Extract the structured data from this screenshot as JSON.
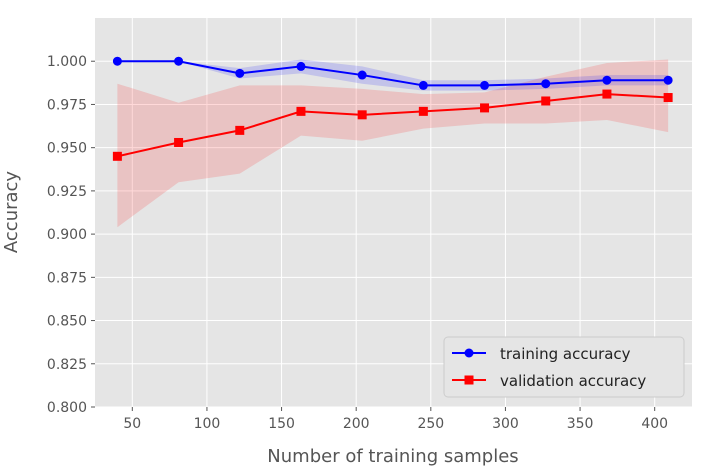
{
  "chart_data": {
    "type": "line",
    "title": "",
    "xlabel": "Number of training samples",
    "ylabel": "Accuracy",
    "xlim": [
      25,
      425
    ],
    "ylim": [
      0.8,
      1.025
    ],
    "grid": true,
    "x_ticks": [
      50,
      100,
      150,
      200,
      250,
      300,
      350,
      400
    ],
    "x_tick_labels": [
      "50",
      "100",
      "150",
      "200",
      "250",
      "300",
      "350",
      "400"
    ],
    "y_ticks": [
      0.8,
      0.825,
      0.85,
      0.875,
      0.9,
      0.925,
      0.95,
      0.975,
      1.0
    ],
    "y_tick_labels": [
      "0.800",
      "0.825",
      "0.850",
      "0.875",
      "0.900",
      "0.925",
      "0.950",
      "0.975",
      "1.000"
    ],
    "legend_position": "lower-right",
    "series": [
      {
        "name": "training accuracy",
        "color": "#0000ff",
        "marker": "circle",
        "x": [
          40,
          81,
          122,
          163,
          204,
          245,
          286,
          327,
          368,
          409
        ],
        "values": [
          1.0,
          1.0,
          0.993,
          0.997,
          0.992,
          0.986,
          0.986,
          0.987,
          0.989,
          0.989
        ],
        "band_lower": [
          1.0,
          1.0,
          0.99,
          0.993,
          0.987,
          0.983,
          0.983,
          0.984,
          0.986,
          0.986
        ],
        "band_upper": [
          1.0,
          1.0,
          0.996,
          1.001,
          0.997,
          0.989,
          0.989,
          0.99,
          0.992,
          0.992
        ],
        "band_color": "#0000ff"
      },
      {
        "name": "validation accuracy",
        "color": "#ff0000",
        "marker": "square",
        "x": [
          40,
          81,
          122,
          163,
          204,
          245,
          286,
          327,
          368,
          409
        ],
        "values": [
          0.945,
          0.953,
          0.96,
          0.971,
          0.969,
          0.971,
          0.973,
          0.977,
          0.981,
          0.979
        ],
        "band_lower": [
          0.904,
          0.93,
          0.935,
          0.957,
          0.954,
          0.961,
          0.964,
          0.964,
          0.966,
          0.959
        ],
        "band_upper": [
          0.987,
          0.976,
          0.986,
          0.986,
          0.984,
          0.981,
          0.982,
          0.991,
          0.999,
          1.001
        ],
        "band_color": "#ff0000"
      }
    ]
  }
}
